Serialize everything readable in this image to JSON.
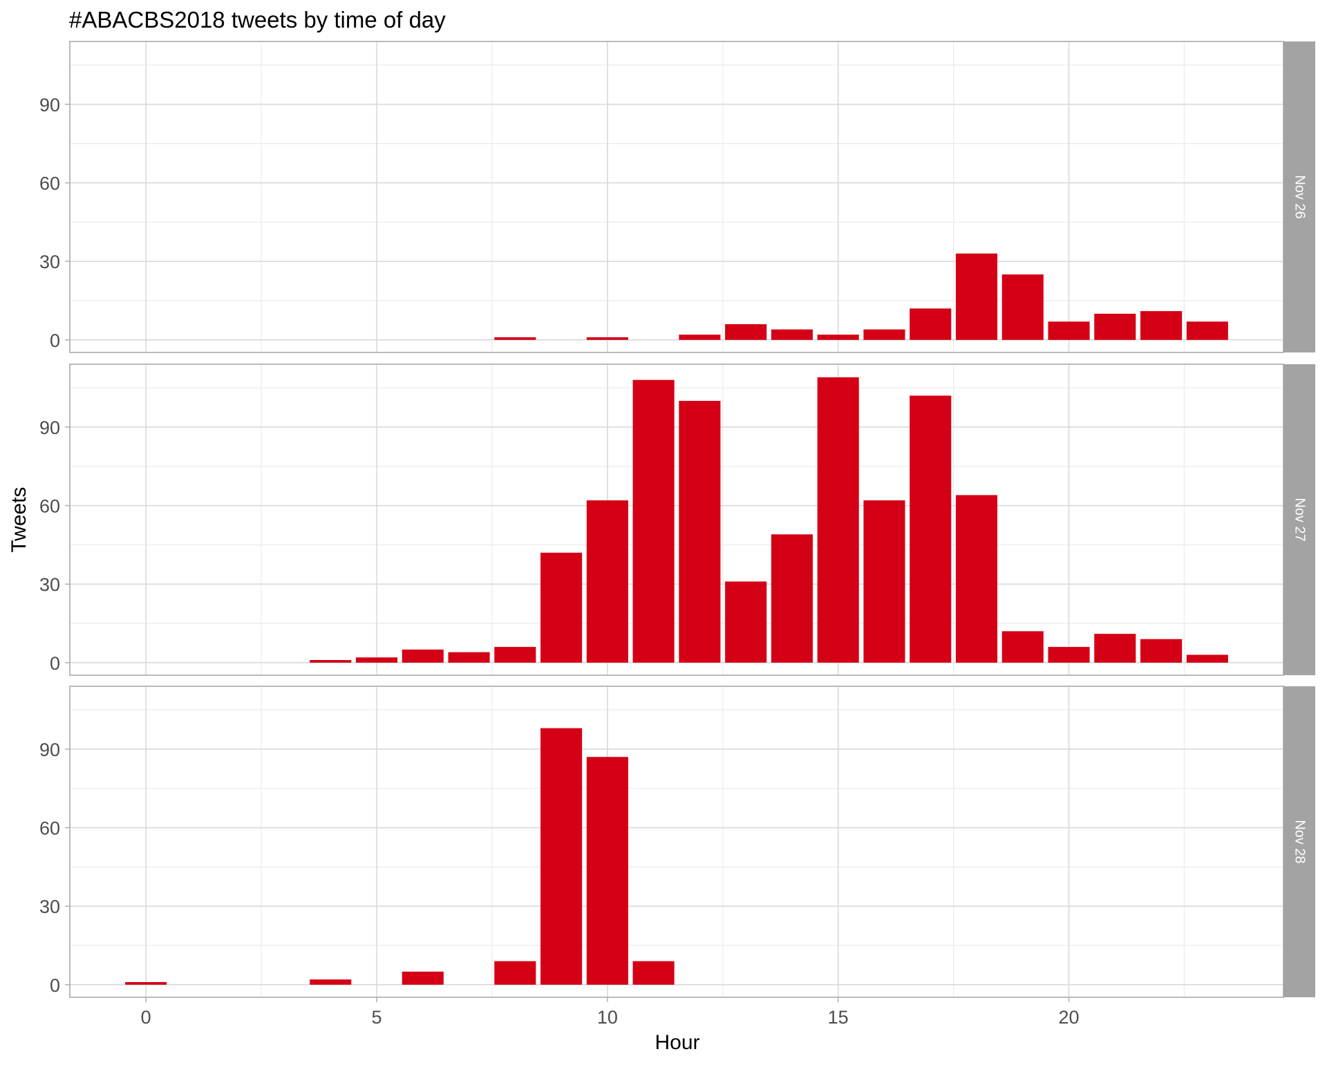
{
  "chart_data": {
    "type": "bar",
    "title": "#ABACBS2018 tweets by time of day",
    "xlabel": "Hour",
    "ylabel": "Tweets",
    "xlim": [
      -1.65,
      24.65
    ],
    "ylim": [
      -4.8,
      114
    ],
    "x_ticks": [
      0,
      5,
      10,
      15,
      20
    ],
    "y_ticks": [
      0,
      30,
      60,
      90
    ],
    "bar_color": "#D40015",
    "strip_color": "#A3A3A3",
    "grid": true,
    "facets": [
      {
        "label": "Nov 26",
        "hours": [
          8,
          10,
          12,
          13,
          14,
          15,
          16,
          17,
          18,
          19,
          20,
          21,
          22,
          23
        ],
        "values": [
          1,
          1,
          2,
          6,
          4,
          2,
          4,
          12,
          33,
          25,
          7,
          10,
          11,
          7
        ]
      },
      {
        "label": "Nov 27",
        "hours": [
          4,
          5,
          6,
          7,
          8,
          9,
          10,
          11,
          12,
          13,
          14,
          15,
          16,
          17,
          18,
          19,
          20,
          21,
          22,
          23
        ],
        "values": [
          1,
          2,
          5,
          4,
          6,
          42,
          62,
          108,
          100,
          31,
          49,
          109,
          62,
          102,
          64,
          12,
          6,
          11,
          9,
          3
        ]
      },
      {
        "label": "Nov 28",
        "hours": [
          0,
          4,
          6,
          8,
          9,
          10,
          11
        ],
        "values": [
          1,
          2,
          5,
          9,
          98,
          87,
          9
        ]
      }
    ]
  }
}
